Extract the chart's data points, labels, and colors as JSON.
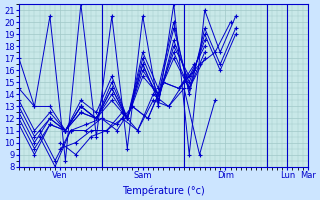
{
  "xlabel": "Température (°c)",
  "bg_color": "#cce5ff",
  "plot_bg": "#c8e8e8",
  "grid_color": "#a0c8c8",
  "line_color": "#0000cc",
  "marker": "+",
  "ylim": [
    8,
    21.5
  ],
  "yticks": [
    8,
    9,
    10,
    11,
    12,
    13,
    14,
    15,
    16,
    17,
    18,
    19,
    20,
    21
  ],
  "xlim": [
    0,
    56
  ],
  "xtick_positions": [
    8,
    24,
    40,
    52,
    56
  ],
  "xtick_labels": [
    "Ven",
    "Sam",
    "Dim",
    "Lun",
    "Mar"
  ],
  "vlines": [
    16,
    32,
    48,
    52
  ],
  "series": [
    {
      "start": 0,
      "vals": [
        17.0,
        13.0,
        20.5,
        8.5,
        21.5,
        10.5,
        20.5,
        9.5,
        20.5,
        13.0,
        21.5,
        9.0,
        21.0,
        17.5,
        20.5
      ]
    },
    {
      "start": 0,
      "vals": [
        14.5,
        13.0,
        13.0,
        11.0,
        13.5,
        12.5,
        15.5,
        12.0,
        17.5,
        14.5,
        20.0,
        14.0,
        19.5,
        16.5,
        19.5
      ]
    },
    {
      "start": 0,
      "vals": [
        13.5,
        11.0,
        12.5,
        11.0,
        13.0,
        12.0,
        15.0,
        12.0,
        17.0,
        14.0,
        19.5,
        14.5,
        19.0,
        16.0,
        19.0
      ]
    },
    {
      "start": 0,
      "vals": [
        13.0,
        10.5,
        12.0,
        11.0,
        13.0,
        12.0,
        14.5,
        12.0,
        16.5,
        13.5,
        18.5,
        15.0,
        18.5
      ]
    },
    {
      "start": 0,
      "vals": [
        12.5,
        10.0,
        12.0,
        11.0,
        13.0,
        12.0,
        14.5,
        12.0,
        16.5,
        13.5,
        18.0,
        15.5,
        18.0
      ]
    },
    {
      "start": 0,
      "vals": [
        12.0,
        9.5,
        11.5,
        11.0,
        12.5,
        12.0,
        14.0,
        12.0,
        16.0,
        14.0,
        17.5,
        14.5,
        17.5
      ]
    },
    {
      "start": 0,
      "vals": [
        11.5,
        9.0,
        11.5,
        11.0,
        12.5,
        12.0,
        13.5,
        12.0,
        15.5,
        14.0,
        17.0,
        14.5,
        17.0
      ]
    },
    {
      "start": 4,
      "vals": [
        11.0,
        8.5,
        11.0,
        11.5,
        12.0,
        11.5,
        13.0,
        12.0,
        15.0,
        14.5,
        16.5
      ]
    },
    {
      "start": 4,
      "vals": [
        10.5,
        8.0,
        11.0,
        11.0,
        12.0,
        11.0,
        13.0,
        12.0,
        15.0,
        14.5,
        16.0
      ]
    },
    {
      "start": 8,
      "vals": [
        10.0,
        9.0,
        10.5,
        11.0,
        12.5,
        11.0,
        14.0,
        13.0,
        15.0,
        16.5,
        17.5,
        20.0
      ]
    },
    {
      "start": 8,
      "vals": [
        9.5,
        10.0,
        11.0,
        11.0,
        12.0,
        11.0,
        13.5,
        13.0,
        14.5,
        9.0,
        13.5
      ]
    }
  ]
}
